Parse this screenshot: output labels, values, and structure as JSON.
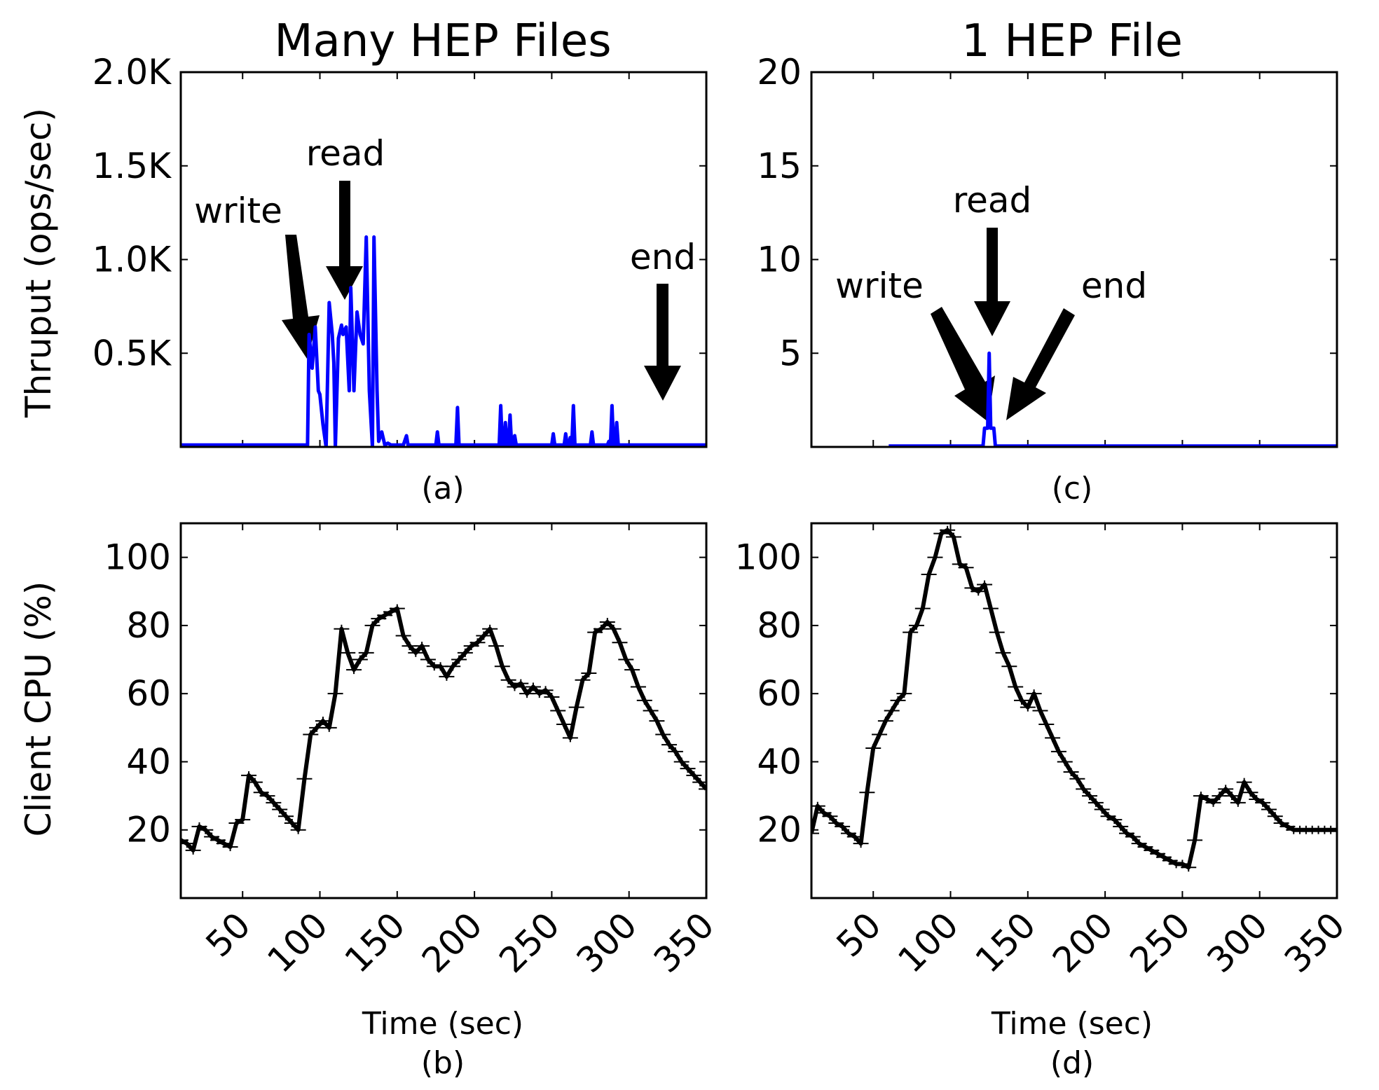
{
  "figure": {
    "panel_a_title": "Many HEP Files",
    "panel_c_title": "1 HEP File",
    "ylabel_top": "Thruput (ops/sec)",
    "ylabel_bottom": "Client CPU (%)",
    "xlabel": "Time (sec)",
    "label_a": "(a)",
    "label_b": "(b)",
    "label_c": "(c)",
    "label_d": "(d)",
    "line_color": "#0000ff",
    "cpu_color": "#000000"
  },
  "chart_data": [
    {
      "id": "a",
      "type": "line",
      "title": "Many HEP Files",
      "ylabel": "Thruput (ops/sec)",
      "xlim": [
        10,
        350
      ],
      "ylim": [
        0,
        2000
      ],
      "yticks": [
        500,
        1000,
        1500,
        2000
      ],
      "ytick_labels": [
        "0.5K",
        "1.0K",
        "1.5K",
        "2.0K"
      ],
      "color": "#0000ff",
      "annotations": [
        {
          "text": "write",
          "x": 92,
          "y": 500
        },
        {
          "text": "read",
          "x": 116,
          "y": 780
        },
        {
          "text": "end",
          "x": 318,
          "y": 240
        }
      ],
      "x": [
        10,
        92,
        93,
        95,
        97,
        99,
        100,
        102,
        104,
        106,
        108,
        109,
        110,
        112,
        114,
        115,
        117,
        119,
        120,
        122,
        124,
        126,
        128,
        130,
        132,
        134,
        135,
        137,
        138,
        140,
        142,
        144,
        146,
        148,
        150,
        152,
        154,
        156,
        157,
        159,
        161,
        163,
        175,
        176,
        177,
        178,
        188,
        189,
        190,
        191,
        200,
        210,
        214,
        215,
        216,
        217,
        218,
        219,
        220,
        221,
        222,
        223,
        224,
        225,
        226,
        227,
        228,
        229,
        230,
        231,
        232,
        233,
        250,
        251,
        252,
        253,
        258,
        259,
        260,
        261,
        262,
        263,
        264,
        265,
        266,
        267,
        268,
        275,
        276,
        277,
        278,
        285,
        286,
        287,
        288,
        289,
        290,
        291,
        292,
        293,
        294,
        295,
        350
      ],
      "y": [
        10,
        10,
        600,
        420,
        640,
        300,
        280,
        120,
        0,
        770,
        600,
        450,
        0,
        580,
        650,
        600,
        640,
        300,
        850,
        300,
        720,
        600,
        550,
        1120,
        300,
        0,
        1120,
        300,
        30,
        80,
        10,
        20,
        10,
        10,
        10,
        10,
        10,
        60,
        10,
        10,
        10,
        10,
        10,
        80,
        10,
        10,
        10,
        210,
        10,
        10,
        10,
        10,
        10,
        10,
        10,
        220,
        10,
        10,
        130,
        10,
        10,
        170,
        10,
        10,
        60,
        10,
        10,
        10,
        10,
        10,
        10,
        10,
        10,
        70,
        10,
        10,
        10,
        70,
        10,
        10,
        50,
        10,
        220,
        10,
        10,
        10,
        10,
        10,
        80,
        10,
        10,
        10,
        10,
        30,
        10,
        220,
        10,
        10,
        130,
        10,
        10,
        10,
        10
      ]
    },
    {
      "id": "c",
      "type": "line",
      "title": "1 HEP File",
      "xlim": [
        10,
        350
      ],
      "ylim": [
        0,
        20
      ],
      "yticks": [
        5,
        10,
        15,
        20
      ],
      "ytick_labels": [
        "5",
        "10",
        "15",
        "20"
      ],
      "color": "#0000ff",
      "annotations": [
        {
          "text": "write",
          "x": 123,
          "y": 1.5
        },
        {
          "text": "read",
          "x": 126,
          "y": 6
        },
        {
          "text": "end",
          "x": 130,
          "y": 1.5
        }
      ],
      "x": [
        60,
        120,
        121,
        122,
        123,
        124,
        125,
        126,
        127,
        128,
        129,
        350
      ],
      "y": [
        0.05,
        0.05,
        0.05,
        1,
        1,
        1,
        5,
        1,
        1,
        1,
        0.05,
        0.05
      ]
    },
    {
      "id": "b",
      "type": "line",
      "ylabel": "Client CPU (%)",
      "xlabel": "Time (sec)",
      "xlim": [
        10,
        350
      ],
      "ylim": [
        0,
        110
      ],
      "yticks": [
        20,
        40,
        60,
        80,
        100
      ],
      "xticks": [
        50,
        100,
        150,
        200,
        250,
        300,
        350
      ],
      "color": "#000000",
      "x": [
        10,
        14,
        18,
        22,
        26,
        30,
        34,
        38,
        42,
        46,
        50,
        54,
        58,
        62,
        66,
        70,
        74,
        78,
        82,
        86,
        90,
        94,
        98,
        102,
        106,
        110,
        114,
        118,
        122,
        126,
        130,
        134,
        138,
        142,
        146,
        150,
        154,
        158,
        162,
        166,
        170,
        174,
        178,
        182,
        186,
        190,
        194,
        198,
        202,
        206,
        210,
        214,
        218,
        222,
        226,
        230,
        234,
        238,
        242,
        246,
        250,
        254,
        258,
        262,
        266,
        270,
        274,
        278,
        282,
        286,
        290,
        294,
        298,
        302,
        306,
        310,
        314,
        318,
        322,
        326,
        330,
        334,
        338,
        342,
        346,
        350
      ],
      "y": [
        17,
        16,
        14,
        21,
        20,
        18,
        17,
        16,
        15,
        22,
        23,
        36,
        34,
        31,
        30,
        28,
        26,
        24,
        22,
        20,
        35,
        48,
        50,
        52,
        50,
        60,
        79,
        72,
        67,
        70,
        72,
        80,
        82,
        83,
        84,
        85,
        77,
        74,
        72,
        74,
        70,
        68,
        68,
        65,
        68,
        70,
        72,
        74,
        75,
        77,
        79,
        74,
        68,
        64,
        62,
        63,
        60,
        62,
        60,
        61,
        59,
        55,
        51,
        47,
        56,
        64,
        66,
        78,
        79,
        81,
        79,
        75,
        70,
        67,
        62,
        58,
        55,
        52,
        48,
        45,
        43,
        40,
        38,
        36,
        34,
        32
      ]
    },
    {
      "id": "d",
      "type": "line",
      "xlabel": "Time (sec)",
      "xlim": [
        10,
        350
      ],
      "ylim": [
        0,
        110
      ],
      "yticks": [
        20,
        40,
        60,
        80,
        100
      ],
      "xticks": [
        50,
        100,
        150,
        200,
        250,
        300,
        350
      ],
      "color": "#000000",
      "x": [
        10,
        14,
        18,
        22,
        26,
        30,
        34,
        38,
        42,
        46,
        50,
        54,
        58,
        62,
        66,
        70,
        74,
        78,
        82,
        86,
        90,
        94,
        98,
        102,
        106,
        110,
        114,
        118,
        122,
        126,
        130,
        134,
        138,
        142,
        146,
        150,
        154,
        158,
        162,
        166,
        170,
        174,
        178,
        182,
        186,
        190,
        194,
        198,
        202,
        206,
        210,
        214,
        218,
        222,
        226,
        230,
        234,
        238,
        242,
        246,
        250,
        254,
        258,
        262,
        266,
        270,
        274,
        278,
        282,
        286,
        290,
        294,
        298,
        302,
        306,
        310,
        314,
        318,
        322,
        326,
        330,
        334,
        338,
        342,
        346,
        350
      ],
      "y": [
        19,
        27,
        25,
        24,
        22,
        21,
        19,
        18,
        16,
        31,
        44,
        48,
        52,
        55,
        58,
        60,
        78,
        80,
        85,
        95,
        100,
        107,
        108,
        106,
        98,
        97,
        91,
        90,
        92,
        85,
        78,
        72,
        68,
        62,
        58,
        56,
        60,
        55,
        51,
        47,
        43,
        40,
        37,
        35,
        32,
        30,
        28,
        26,
        24,
        23,
        21,
        19,
        18,
        16,
        15,
        14,
        13,
        12,
        11,
        10,
        10,
        9,
        17,
        30,
        29,
        28,
        30,
        32,
        30,
        28,
        34,
        31,
        29,
        28,
        26,
        24,
        22,
        21,
        20,
        20,
        20,
        20,
        20,
        20,
        20,
        20
      ]
    }
  ]
}
